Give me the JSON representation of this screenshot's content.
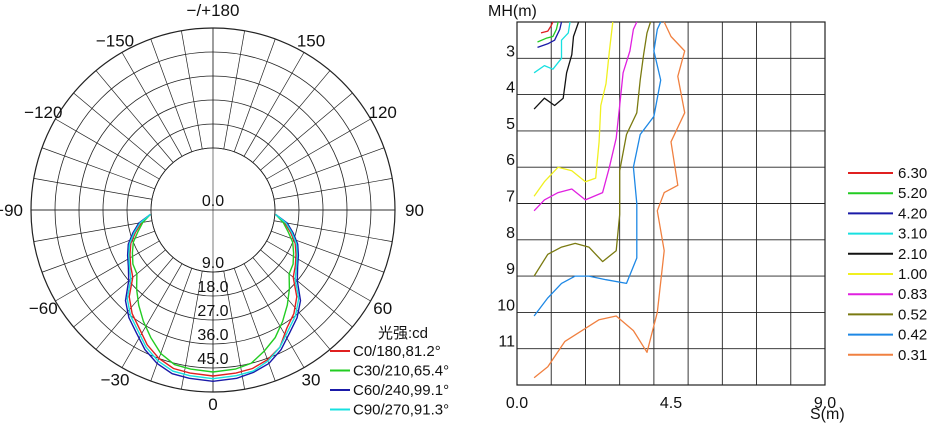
{
  "chart_data": [
    {
      "type": "polar-line",
      "angle_labels": [
        {
          "deg": 180,
          "text": "−/+180"
        },
        {
          "deg": 150,
          "text": "150"
        },
        {
          "deg": -150,
          "text": "−150"
        },
        {
          "deg": 120,
          "text": "120"
        },
        {
          "deg": -120,
          "text": "−120"
        },
        {
          "deg": 90,
          "text": "90"
        },
        {
          "deg": -90,
          "text": "−90"
        },
        {
          "deg": 60,
          "text": "60"
        },
        {
          "deg": -60,
          "text": "−60"
        },
        {
          "deg": 30,
          "text": "30"
        },
        {
          "deg": -30,
          "text": "−30"
        },
        {
          "deg": 0,
          "text": "0"
        }
      ],
      "radial_labels": [
        "0.0",
        "9.0",
        "18.0",
        "27.0",
        "36.0",
        "45.0"
      ],
      "radial_max": 45,
      "unit_label": "光强:cd",
      "series": [
        {
          "name": "C0/180,81.2°",
          "color": "#e02020",
          "points": [
            [
              -86,
              0.3
            ],
            [
              -80,
              4
            ],
            [
              -74,
              7
            ],
            [
              -68,
              10
            ],
            [
              -62,
              12
            ],
            [
              -56,
              14
            ],
            [
              -50,
              16
            ],
            [
              -44,
              22
            ],
            [
              -38,
              26
            ],
            [
              -32,
              29
            ],
            [
              -26,
              33
            ],
            [
              -20,
              36
            ],
            [
              -14,
              38
            ],
            [
              -8,
              38.5
            ],
            [
              0,
              39
            ],
            [
              8,
              38.5
            ],
            [
              14,
              38
            ],
            [
              20,
              36.5
            ],
            [
              26,
              34
            ],
            [
              32,
              29
            ],
            [
              38,
              26
            ],
            [
              44,
              22
            ],
            [
              50,
              16
            ],
            [
              56,
              14
            ],
            [
              62,
              12
            ],
            [
              68,
              10
            ],
            [
              74,
              7
            ],
            [
              80,
              4
            ],
            [
              86,
              0.3
            ]
          ]
        },
        {
          "name": "C30/210,65.4°",
          "color": "#22cc22",
          "points": [
            [
              -86,
              0.3
            ],
            [
              -80,
              3.5
            ],
            [
              -74,
              6
            ],
            [
              -68,
              9
            ],
            [
              -62,
              11
            ],
            [
              -56,
              13
            ],
            [
              -50,
              14
            ],
            [
              -44,
              18
            ],
            [
              -38,
              22
            ],
            [
              -32,
              26
            ],
            [
              -26,
              30
            ],
            [
              -20,
              34
            ],
            [
              -14,
              36.5
            ],
            [
              -8,
              37
            ],
            [
              0,
              37.5
            ],
            [
              8,
              37
            ],
            [
              14,
              36
            ],
            [
              20,
              33
            ],
            [
              26,
              30
            ],
            [
              32,
              26
            ],
            [
              38,
              22
            ],
            [
              44,
              18
            ],
            [
              50,
              14
            ],
            [
              56,
              13
            ],
            [
              62,
              11
            ],
            [
              68,
              9
            ],
            [
              74,
              6
            ],
            [
              80,
              3.5
            ],
            [
              86,
              0.3
            ]
          ]
        },
        {
          "name": "C60/240,99.1°",
          "color": "#1a1aa8",
          "points": [
            [
              -86,
              0.3
            ],
            [
              -80,
              5
            ],
            [
              -74,
              8
            ],
            [
              -68,
              11
            ],
            [
              -62,
              13
            ],
            [
              -56,
              15
            ],
            [
              -50,
              18
            ],
            [
              -44,
              24
            ],
            [
              -38,
              28
            ],
            [
              -32,
              31
            ],
            [
              -26,
              35
            ],
            [
              -20,
              38
            ],
            [
              -14,
              40
            ],
            [
              -8,
              40.5
            ],
            [
              0,
              41
            ],
            [
              8,
              40.5
            ],
            [
              14,
              39.5
            ],
            [
              20,
              38
            ],
            [
              26,
              35
            ],
            [
              32,
              31
            ],
            [
              38,
              28
            ],
            [
              44,
              24
            ],
            [
              50,
              18
            ],
            [
              56,
              15
            ],
            [
              62,
              13
            ],
            [
              68,
              11
            ],
            [
              74,
              8
            ],
            [
              80,
              5
            ],
            [
              86,
              0.3
            ]
          ]
        },
        {
          "name": "C90/270,91.3°",
          "color": "#18e0e0",
          "points": [
            [
              -86,
              0.3
            ],
            [
              -80,
              4.5
            ],
            [
              -74,
              7.5
            ],
            [
              -68,
              10.5
            ],
            [
              -62,
              12.5
            ],
            [
              -56,
              14.5
            ],
            [
              -50,
              17
            ],
            [
              -44,
              23
            ],
            [
              -38,
              27
            ],
            [
              -32,
              30
            ],
            [
              -26,
              34
            ],
            [
              -20,
              37
            ],
            [
              -14,
              39
            ],
            [
              -8,
              39.5
            ],
            [
              0,
              40
            ],
            [
              8,
              39.5
            ],
            [
              14,
              39
            ],
            [
              20,
              37
            ],
            [
              26,
              34
            ],
            [
              32,
              30
            ],
            [
              38,
              27
            ],
            [
              44,
              23
            ],
            [
              50,
              17
            ],
            [
              56,
              14.5
            ],
            [
              62,
              12.5
            ],
            [
              68,
              10.5
            ],
            [
              74,
              7.5
            ],
            [
              80,
              4.5
            ],
            [
              86,
              0.3
            ]
          ]
        }
      ]
    },
    {
      "type": "line",
      "ylabel": "MH(m)",
      "xlabel": "S(m)",
      "xlim": [
        0,
        9
      ],
      "ylim": [
        2,
        12
      ],
      "x_ticks": [
        "0.0",
        "4.5",
        "9.0"
      ],
      "y_ticks": [
        "3",
        "4",
        "5",
        "6",
        "7",
        "8",
        "9",
        "10",
        "11"
      ],
      "grid": true,
      "legend_position": "right",
      "series": [
        {
          "name": "6.30",
          "color": "#e02020",
          "points": [
            [
              0.7,
              2.3
            ],
            [
              0.9,
              2.25
            ],
            [
              1.0,
              2.1
            ],
            [
              1.05,
              2.0
            ]
          ]
        },
        {
          "name": "5.20",
          "color": "#22cc22",
          "points": [
            [
              0.6,
              2.55
            ],
            [
              0.85,
              2.45
            ],
            [
              1.05,
              2.4
            ],
            [
              1.15,
              2.2
            ],
            [
              1.2,
              2.0
            ]
          ]
        },
        {
          "name": "4.20",
          "color": "#1a1aa8",
          "points": [
            [
              0.6,
              2.7
            ],
            [
              0.9,
              2.6
            ],
            [
              1.1,
              2.5
            ],
            [
              1.25,
              2.2
            ],
            [
              1.3,
              2.0
            ]
          ]
        },
        {
          "name": "3.10",
          "color": "#18e0e0",
          "points": [
            [
              0.5,
              3.4
            ],
            [
              0.8,
              3.2
            ],
            [
              1.05,
              3.3
            ],
            [
              1.3,
              3.0
            ],
            [
              1.3,
              2.5
            ],
            [
              1.5,
              2.3
            ],
            [
              1.55,
              2.0
            ]
          ]
        },
        {
          "name": "2.10",
          "color": "#111111",
          "points": [
            [
              0.5,
              4.4
            ],
            [
              0.8,
              4.1
            ],
            [
              1.1,
              4.3
            ],
            [
              1.35,
              4.1
            ],
            [
              1.45,
              3.4
            ],
            [
              1.6,
              2.9
            ],
            [
              1.65,
              2.4
            ],
            [
              1.8,
              2.0
            ]
          ]
        },
        {
          "name": "1.00",
          "color": "#f0f020",
          "points": [
            [
              0.5,
              6.8
            ],
            [
              0.8,
              6.4
            ],
            [
              1.2,
              6.0
            ],
            [
              1.6,
              6.1
            ],
            [
              2.0,
              6.4
            ],
            [
              2.3,
              6.3
            ],
            [
              2.4,
              5.3
            ],
            [
              2.45,
              4.3
            ],
            [
              2.6,
              3.7
            ],
            [
              2.7,
              2.8
            ],
            [
              2.8,
              2.0
            ]
          ]
        },
        {
          "name": "0.83",
          "color": "#e020e0",
          "points": [
            [
              0.5,
              7.2
            ],
            [
              0.8,
              6.9
            ],
            [
              1.2,
              6.7
            ],
            [
              1.6,
              6.6
            ],
            [
              2.0,
              6.9
            ],
            [
              2.5,
              6.7
            ],
            [
              2.7,
              6.0
            ],
            [
              2.9,
              5.2
            ],
            [
              3.0,
              4.3
            ],
            [
              3.1,
              3.4
            ],
            [
              3.3,
              2.8
            ],
            [
              3.4,
              2.2
            ],
            [
              3.5,
              2.0
            ]
          ]
        },
        {
          "name": "0.52",
          "color": "#7a7a10",
          "points": [
            [
              0.5,
              9.0
            ],
            [
              0.9,
              8.4
            ],
            [
              1.3,
              8.2
            ],
            [
              1.7,
              8.1
            ],
            [
              2.1,
              8.2
            ],
            [
              2.5,
              8.6
            ],
            [
              2.9,
              8.3
            ],
            [
              3.0,
              7.3
            ],
            [
              3.0,
              6.1
            ],
            [
              3.2,
              5.1
            ],
            [
              3.5,
              4.5
            ],
            [
              3.6,
              3.6
            ],
            [
              3.7,
              2.9
            ],
            [
              3.8,
              2.3
            ],
            [
              3.9,
              2.0
            ]
          ]
        },
        {
          "name": "0.42",
          "color": "#1e88e5",
          "points": [
            [
              0.5,
              10.1
            ],
            [
              0.9,
              9.6
            ],
            [
              1.3,
              9.2
            ],
            [
              1.7,
              9.0
            ],
            [
              2.1,
              9.0
            ],
            [
              2.6,
              9.1
            ],
            [
              3.2,
              9.2
            ],
            [
              3.5,
              8.5
            ],
            [
              3.5,
              7.0
            ],
            [
              3.4,
              6.0
            ],
            [
              3.6,
              5.1
            ],
            [
              4.0,
              4.6
            ],
            [
              4.2,
              3.6
            ],
            [
              4.0,
              2.8
            ],
            [
              4.1,
              2.2
            ],
            [
              4.2,
              2.0
            ]
          ]
        },
        {
          "name": "0.31",
          "color": "#f08040",
          "points": [
            [
              0.5,
              11.8
            ],
            [
              0.9,
              11.5
            ],
            [
              1.4,
              10.8
            ],
            [
              1.9,
              10.5
            ],
            [
              2.4,
              10.2
            ],
            [
              2.9,
              10.1
            ],
            [
              3.4,
              10.5
            ],
            [
              3.8,
              11.1
            ],
            [
              4.1,
              10.0
            ],
            [
              4.3,
              8.3
            ],
            [
              4.1,
              7.2
            ],
            [
              4.3,
              6.7
            ],
            [
              4.7,
              6.5
            ],
            [
              4.5,
              5.3
            ],
            [
              4.9,
              4.5
            ],
            [
              4.7,
              3.5
            ],
            [
              4.9,
              2.8
            ],
            [
              4.5,
              2.4
            ],
            [
              4.3,
              2.0
            ]
          ]
        }
      ]
    }
  ]
}
